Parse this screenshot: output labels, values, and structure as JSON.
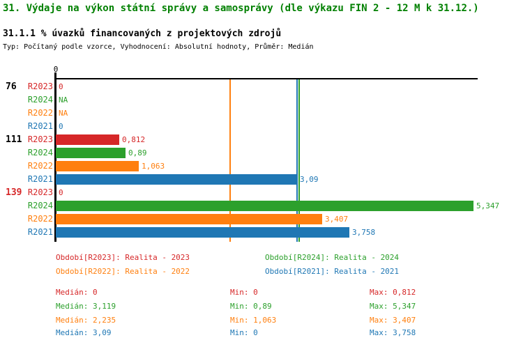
{
  "colors": {
    "red": "#d62728",
    "green": "#2ca02c",
    "orange": "#ff7f0e",
    "blue": "#1f77b4",
    "title_green": "#008000",
    "black": "#000000",
    "axis": "#000000"
  },
  "chart_data": {
    "type": "bar",
    "orientation": "horizontal",
    "title": "31. Výdaje na výkon státní správy a samosprávy (dle výkazu FIN 2 - 12 M k 31.12.)",
    "subtitle": "31.1.1 % úvazků financovaných z projektových zdrojů",
    "meta": "Typ: Počítaný podle vzorce, Vyhodnocení: Absolutní hodnoty, Průměr: Medián",
    "axis": {
      "zero_label": "0",
      "range": [
        0,
        5.4
      ],
      "grid": false
    },
    "groups": [
      {
        "id": "76",
        "id_color": "black",
        "rows": [
          {
            "period": "R2023",
            "color": "red",
            "value": 0,
            "label": "0"
          },
          {
            "period": "R2024",
            "color": "green",
            "value": null,
            "label": "NA"
          },
          {
            "period": "R2022",
            "color": "orange",
            "value": null,
            "label": "NA"
          },
          {
            "period": "R2021",
            "color": "blue",
            "value": 0,
            "label": "0"
          }
        ]
      },
      {
        "id": "111",
        "id_color": "black",
        "rows": [
          {
            "period": "R2023",
            "color": "red",
            "value": 0.812,
            "label": "0,812"
          },
          {
            "period": "R2024",
            "color": "green",
            "value": 0.89,
            "label": "0,89"
          },
          {
            "period": "R2022",
            "color": "orange",
            "value": 1.063,
            "label": "1,063"
          },
          {
            "period": "R2021",
            "color": "blue",
            "value": 3.09,
            "label": "3,09"
          }
        ]
      },
      {
        "id": "139",
        "id_color": "red",
        "rows": [
          {
            "period": "R2023",
            "color": "red",
            "value": 0,
            "label": "0"
          },
          {
            "period": "R2024",
            "color": "green",
            "value": 5.347,
            "label": "5,347"
          },
          {
            "period": "R2022",
            "color": "orange",
            "value": 3.407,
            "label": "3,407"
          },
          {
            "period": "R2021",
            "color": "blue",
            "value": 3.758,
            "label": "3,758"
          }
        ]
      }
    ],
    "median_lines": [
      {
        "color": "orange",
        "value": 2.235
      },
      {
        "color": "blue",
        "value": 3.09
      },
      {
        "color": "green",
        "value": 3.119
      }
    ],
    "legend": [
      {
        "text": "Období[R2023]: Realita - 2023",
        "color": "red"
      },
      {
        "text": "Období[R2024]: Realita - 2024",
        "color": "green"
      },
      {
        "text": "Období[R2022]: Realita - 2022",
        "color": "orange"
      },
      {
        "text": "Období[R2021]: Realita - 2021",
        "color": "blue"
      }
    ],
    "stats_labels": {
      "median": "Medián:",
      "min": "Min:",
      "max": "Max:"
    },
    "stats": [
      {
        "color": "red",
        "median": "0",
        "min": "0",
        "max": "0,812"
      },
      {
        "color": "green",
        "median": "3,119",
        "min": "0,89",
        "max": "5,347"
      },
      {
        "color": "orange",
        "median": "2,235",
        "min": "1,063",
        "max": "3,407"
      },
      {
        "color": "blue",
        "median": "3,09",
        "min": "0",
        "max": "3,758"
      }
    ]
  }
}
